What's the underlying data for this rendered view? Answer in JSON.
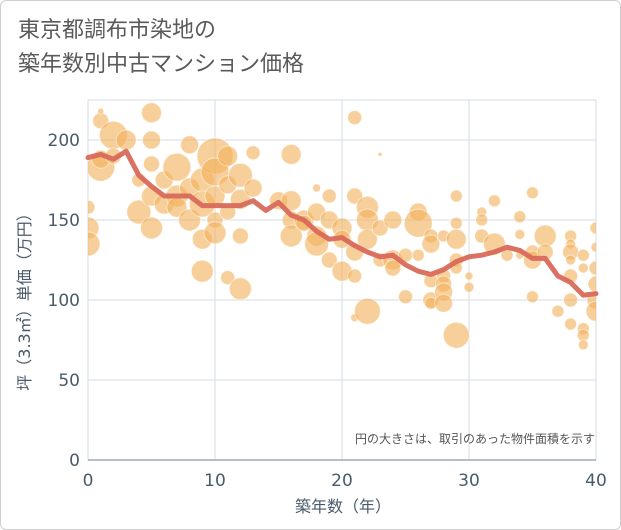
{
  "title_line1": "東京都調布市染地の",
  "title_line2": "築年数別中古マンション価格",
  "chart_data": {
    "type": "scatter",
    "xlabel": "築年数（年）",
    "ylabel": "坪（3.3㎡）単価（万円）",
    "annotation": "円の大きさは、取引のあった物件面積を示す",
    "xlim": [
      0,
      40
    ],
    "ylim": [
      0,
      225
    ],
    "xticks": [
      0,
      10,
      20,
      30,
      40
    ],
    "yticks": [
      0,
      50,
      100,
      150,
      200
    ],
    "grid": true,
    "colors": {
      "bubble": "#f2b25c",
      "line": "#d9695a",
      "grid": "#d6dde6"
    },
    "scatter_points": [
      [
        0,
        158,
        7
      ],
      [
        0,
        145,
        11
      ],
      [
        0,
        135,
        12
      ],
      [
        1,
        212,
        8
      ],
      [
        1,
        218,
        3
      ],
      [
        1,
        183,
        14
      ],
      [
        1,
        188,
        9
      ],
      [
        2,
        203,
        14
      ],
      [
        2,
        190,
        8
      ],
      [
        3,
        200,
        10
      ],
      [
        4,
        155,
        12
      ],
      [
        4,
        175,
        7
      ],
      [
        5,
        217,
        10
      ],
      [
        5,
        200,
        9
      ],
      [
        5,
        185,
        8
      ],
      [
        5,
        165,
        10
      ],
      [
        5,
        145,
        11
      ],
      [
        6,
        175,
        9
      ],
      [
        6,
        160,
        10
      ],
      [
        7,
        183,
        14
      ],
      [
        7,
        165,
        11
      ],
      [
        7,
        158,
        10
      ],
      [
        8,
        197,
        9
      ],
      [
        8,
        170,
        10
      ],
      [
        8,
        150,
        11
      ],
      [
        9,
        175,
        12
      ],
      [
        9,
        160,
        13
      ],
      [
        9,
        138,
        10
      ],
      [
        9,
        118,
        11
      ],
      [
        10,
        190,
        18
      ],
      [
        10,
        180,
        14
      ],
      [
        10,
        165,
        10
      ],
      [
        10,
        150,
        8
      ],
      [
        10,
        142,
        11
      ],
      [
        11,
        190,
        10
      ],
      [
        11,
        172,
        9
      ],
      [
        11,
        155,
        8
      ],
      [
        11,
        114,
        7
      ],
      [
        12,
        178,
        12
      ],
      [
        12,
        163,
        10
      ],
      [
        12,
        140,
        8
      ],
      [
        12,
        107,
        11
      ],
      [
        13,
        192,
        7
      ],
      [
        13,
        170,
        9
      ],
      [
        15,
        162,
        9
      ],
      [
        16,
        191,
        10
      ],
      [
        16,
        162,
        10
      ],
      [
        16,
        150,
        9
      ],
      [
        16,
        140,
        11
      ],
      [
        17,
        150,
        10
      ],
      [
        17,
        148,
        8
      ],
      [
        18,
        170,
        4
      ],
      [
        18,
        155,
        9
      ],
      [
        18,
        140,
        10
      ],
      [
        18,
        135,
        12
      ],
      [
        19,
        165,
        7
      ],
      [
        19,
        150,
        9
      ],
      [
        19,
        125,
        8
      ],
      [
        20,
        145,
        10
      ],
      [
        20,
        138,
        9
      ],
      [
        20,
        118,
        10
      ],
      [
        21,
        214,
        7
      ],
      [
        21,
        165,
        8
      ],
      [
        21,
        130,
        9
      ],
      [
        21,
        115,
        7
      ],
      [
        21,
        89,
        4
      ],
      [
        22,
        158,
        11
      ],
      [
        22,
        150,
        11
      ],
      [
        22,
        138,
        10
      ],
      [
        22,
        93,
        13
      ],
      [
        23,
        191,
        2
      ],
      [
        23,
        145,
        8
      ],
      [
        23,
        125,
        7
      ],
      [
        24,
        150,
        9
      ],
      [
        24,
        125,
        10
      ],
      [
        24,
        120,
        8
      ],
      [
        25,
        102,
        7
      ],
      [
        25,
        128,
        7
      ],
      [
        26,
        155,
        9
      ],
      [
        26,
        148,
        14
      ],
      [
        26,
        128,
        6
      ],
      [
        27,
        140,
        7
      ],
      [
        27,
        135,
        9
      ],
      [
        27,
        112,
        7
      ],
      [
        27,
        100,
        8
      ],
      [
        27,
        98,
        6
      ],
      [
        28,
        140,
        6
      ],
      [
        28,
        115,
        7
      ],
      [
        28,
        110,
        8
      ],
      [
        28,
        105,
        9
      ],
      [
        28,
        98,
        9
      ],
      [
        29,
        165,
        6
      ],
      [
        29,
        148,
        6
      ],
      [
        29,
        138,
        10
      ],
      [
        29,
        125,
        7
      ],
      [
        29,
        120,
        6
      ],
      [
        29,
        78,
        13
      ],
      [
        30,
        115,
        4
      ],
      [
        30,
        108,
        5
      ],
      [
        31,
        155,
        5
      ],
      [
        31,
        150,
        6
      ],
      [
        31,
        140,
        7
      ],
      [
        32,
        162,
        6
      ],
      [
        32,
        135,
        11
      ],
      [
        33,
        128,
        6
      ],
      [
        34,
        152,
        6
      ],
      [
        34,
        141,
        5
      ],
      [
        34,
        128,
        4
      ],
      [
        35,
        167,
        6
      ],
      [
        35,
        130,
        7
      ],
      [
        35,
        125,
        9
      ],
      [
        35,
        102,
        6
      ],
      [
        36,
        140,
        11
      ],
      [
        36,
        130,
        8
      ],
      [
        37,
        93,
        6
      ],
      [
        38,
        140,
        6
      ],
      [
        38,
        135,
        5
      ],
      [
        38,
        130,
        8
      ],
      [
        38,
        125,
        5
      ],
      [
        38,
        115,
        7
      ],
      [
        38,
        100,
        7
      ],
      [
        38,
        85,
        6
      ],
      [
        39,
        128,
        6
      ],
      [
        39,
        120,
        5
      ],
      [
        39,
        82,
        6
      ],
      [
        39,
        78,
        6
      ],
      [
        39,
        72,
        5
      ],
      [
        40,
        145,
        6
      ],
      [
        40,
        133,
        5
      ],
      [
        40,
        120,
        7
      ],
      [
        40,
        110,
        8
      ],
      [
        40,
        100,
        9
      ],
      [
        40,
        93,
        10
      ]
    ],
    "trend_line": [
      [
        0,
        189
      ],
      [
        1,
        191
      ],
      [
        2,
        188
      ],
      [
        3,
        193
      ],
      [
        4,
        178
      ],
      [
        5,
        171
      ],
      [
        6,
        165
      ],
      [
        7,
        165
      ],
      [
        8,
        165
      ],
      [
        9,
        159
      ],
      [
        10,
        159
      ],
      [
        11,
        159
      ],
      [
        12,
        159
      ],
      [
        13,
        162
      ],
      [
        14,
        156
      ],
      [
        15,
        161
      ],
      [
        16,
        153
      ],
      [
        17,
        150
      ],
      [
        18,
        143
      ],
      [
        19,
        138
      ],
      [
        20,
        139
      ],
      [
        21,
        134
      ],
      [
        22,
        130
      ],
      [
        23,
        127
      ],
      [
        24,
        128
      ],
      [
        25,
        122
      ],
      [
        26,
        118
      ],
      [
        27,
        116
      ],
      [
        28,
        119
      ],
      [
        29,
        124
      ],
      [
        30,
        127
      ],
      [
        31,
        128
      ],
      [
        32,
        130
      ],
      [
        33,
        133
      ],
      [
        34,
        131
      ],
      [
        35,
        126
      ],
      [
        36,
        126
      ],
      [
        37,
        115
      ],
      [
        38,
        111
      ],
      [
        39,
        103
      ],
      [
        40,
        104
      ]
    ]
  }
}
